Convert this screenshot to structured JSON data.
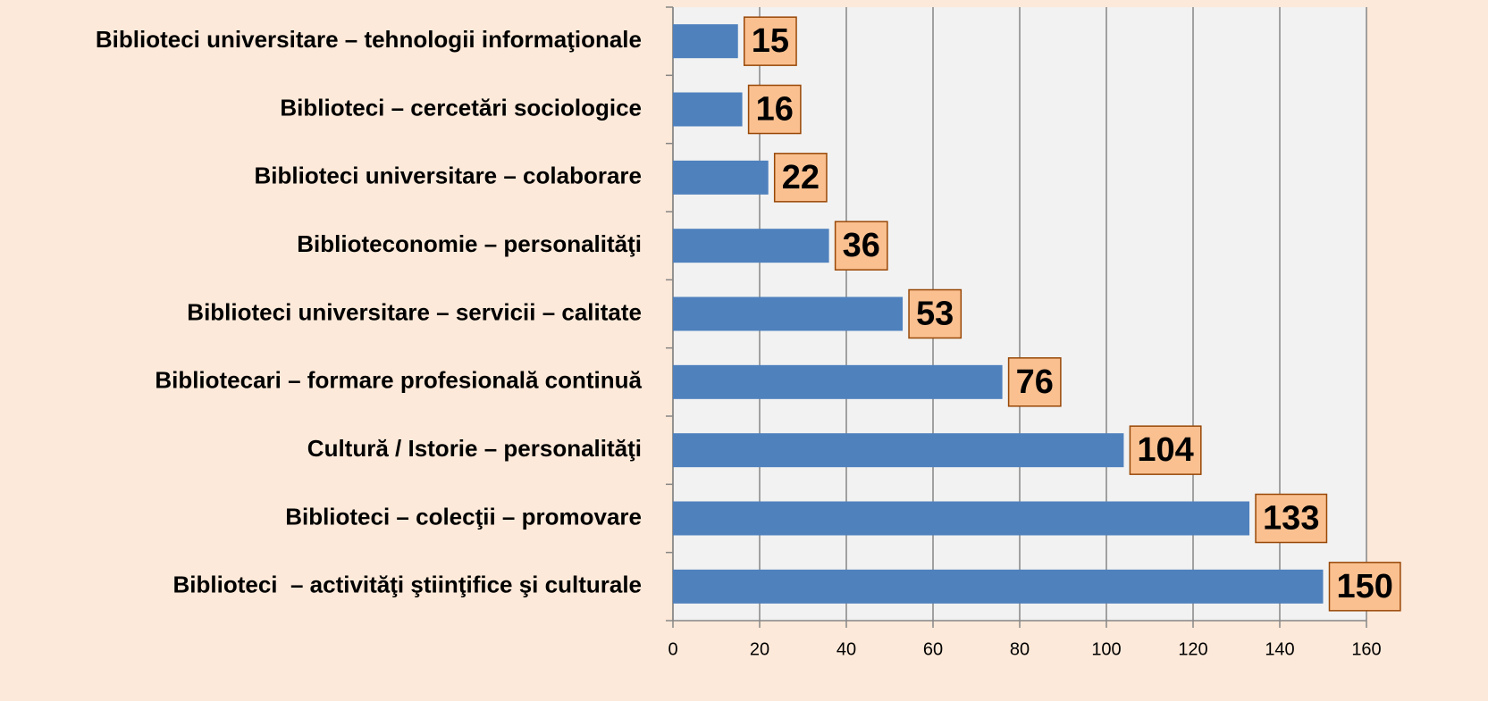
{
  "chart_data": {
    "type": "bar",
    "orientation": "horizontal",
    "categories": [
      "Biblioteci universitare – tehnologii informaţionale",
      "Biblioteci – cercetări sociologice",
      "Biblioteci universitare – colaborare",
      "Biblioteconomie – personalităţi",
      "Biblioteci universitare – servicii – calitate",
      "Bibliotecari – formare profesională continuă",
      "Cultură / Istorie – personalităţi",
      "Biblioteci – colecţii – promovare",
      "Biblioteci  – activităţi ştiinţifice şi culturale"
    ],
    "values": [
      15,
      16,
      22,
      36,
      53,
      76,
      104,
      133,
      150
    ],
    "color": "#4f81bd",
    "label_fill": "#fac090",
    "xlim": [
      0,
      160
    ],
    "xticks": [
      0,
      20,
      40,
      60,
      80,
      100,
      120,
      140,
      160
    ],
    "grid": true
  }
}
